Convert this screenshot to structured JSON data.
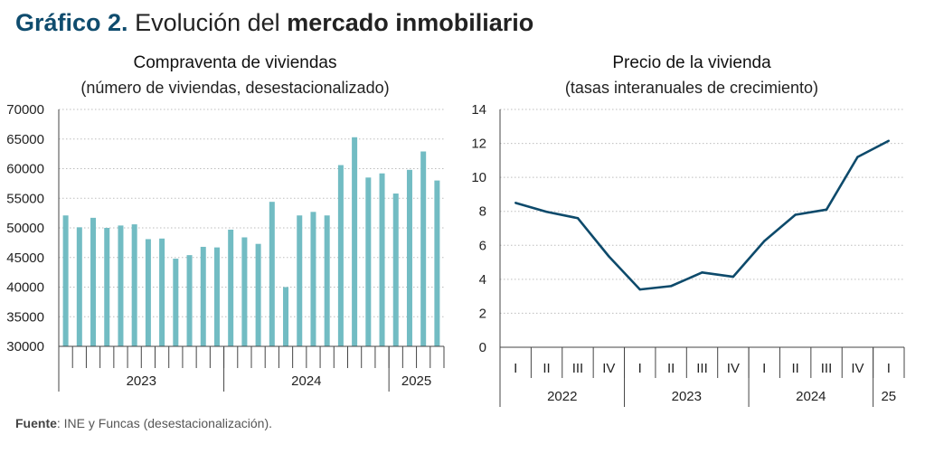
{
  "heading": {
    "number": "Gráfico 2.",
    "text": "Evolución del",
    "bold": "mercado inmobiliario"
  },
  "source": {
    "label": "Fuente",
    "text": ": INE y Funcas (desestacionalización)."
  },
  "chart_data": [
    {
      "type": "bar",
      "title": "Compraventa de viviendas",
      "subtitle": "(número de viviendas, desestacionalizado)",
      "ylim": [
        30000,
        70000
      ],
      "yticks": [
        30000,
        35000,
        40000,
        45000,
        50000,
        55000,
        60000,
        65000,
        70000
      ],
      "grid": true,
      "color": "#72bcc3",
      "values": [
        52100,
        50100,
        51700,
        50000,
        50400,
        50600,
        48100,
        48200,
        44800,
        45400,
        46800,
        46700,
        49700,
        48400,
        47300,
        54400,
        40000,
        52100,
        52700,
        52100,
        60600,
        65300,
        58500,
        59200,
        55800,
        59800,
        62900,
        58000
      ],
      "groups": [
        {
          "label": "2023",
          "count": 12
        },
        {
          "label": "2024",
          "count": 12
        },
        {
          "label": "2025",
          "count": 4
        }
      ]
    },
    {
      "type": "line",
      "title": "Precio de la vivienda",
      "subtitle": "(tasas interanuales de crecimiento)",
      "ylim": [
        0,
        14
      ],
      "yticks": [
        0,
        2,
        4,
        6,
        8,
        10,
        12,
        14
      ],
      "grid": true,
      "color": "#0d4a6b",
      "categories": [
        "I",
        "II",
        "III",
        "IV",
        "I",
        "II",
        "III",
        "IV",
        "I",
        "II",
        "III",
        "IV",
        "I"
      ],
      "values": [
        8.5,
        7.97,
        7.6,
        5.35,
        3.4,
        3.6,
        4.4,
        4.15,
        6.25,
        7.8,
        8.1,
        11.2,
        12.15
      ],
      "groups": [
        {
          "label": "2022",
          "count": 4
        },
        {
          "label": "2023",
          "count": 4
        },
        {
          "label": "2024",
          "count": 4
        },
        {
          "label": "25",
          "count": 1
        }
      ]
    }
  ]
}
